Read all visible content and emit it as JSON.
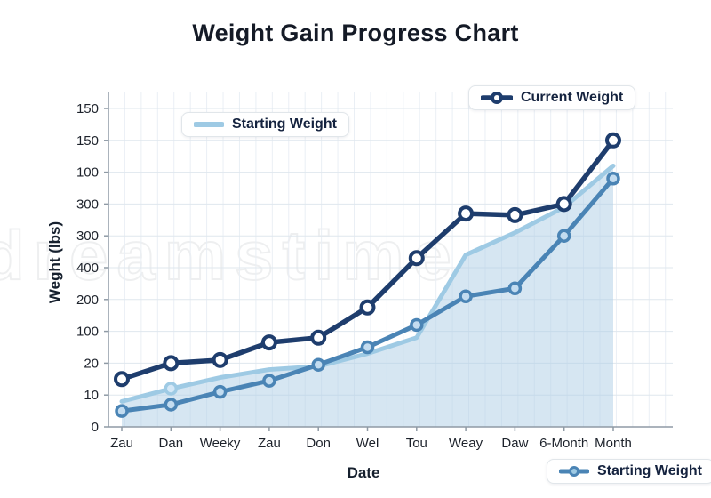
{
  "title": "Weight Gain Progress Chart",
  "watermark": "dreamstime",
  "legends": {
    "top_left": "Starting Weight",
    "top_right": "Current Weight",
    "bottom_right": "Starting Weight"
  },
  "colors": {
    "current_weight": "#1e3d6d",
    "starting_weight_light": "#9ecae4",
    "starting_weight_medium": "#4a84b5",
    "area_fill": "#aecde6",
    "grid_minor": "#eaeff5",
    "grid_major": "#dfe7ee",
    "axis": "#8f9aa5",
    "tick_text": "#1d222b",
    "title_text": "#141a26"
  },
  "chart_data": {
    "type": "line",
    "title": "Weight Gain Progress Chart",
    "xlabel": "Date",
    "ylabel": "Weght (lbs)",
    "categories": [
      "Zau",
      "Dan",
      "Weeky",
      "Zau",
      "Don",
      "Wel",
      "Tou",
      "Weay",
      "Daw",
      "6-Month",
      "Month"
    ],
    "y_tick_labels_bottom_to_top": [
      "0",
      "10",
      "20",
      "100",
      "200",
      "400",
      "300",
      "300",
      "100",
      "150",
      "150"
    ],
    "value_scale": "values in gridline units: 0 = bottom axis, 10 = top gridline (printed y tick labels are non-monotonic in source image)",
    "grid": true,
    "legend_positions": [
      "top-right",
      "top-left",
      "bottom-right"
    ],
    "series": [
      {
        "name": "Current Weight",
        "color": "#1e3d6d",
        "marker": "open-circle",
        "marker_fill": "#ffffff",
        "marker_indices": [
          0,
          1,
          2,
          3,
          4,
          5,
          6,
          7,
          8,
          9,
          10
        ],
        "area_fill": false,
        "values": [
          1.5,
          2.0,
          2.1,
          2.65,
          2.8,
          3.75,
          5.3,
          6.7,
          6.65,
          7.0,
          9.0
        ]
      },
      {
        "name": "Starting Weight",
        "color": "#9ecae4",
        "marker": "open-circle",
        "marker_fill": "#d4e8f7",
        "marker_indices": [
          1
        ],
        "area_fill": true,
        "values": [
          0.8,
          1.2,
          1.55,
          1.8,
          1.9,
          2.3,
          2.8,
          5.4,
          6.1,
          6.9,
          8.2
        ]
      },
      {
        "name": "Starting Weight",
        "color": "#4a84b5",
        "marker": "open-circle",
        "marker_fill": "#c3dcf0",
        "marker_indices": [
          0,
          1,
          2,
          3,
          4,
          5,
          6,
          7,
          8,
          9,
          10
        ],
        "area_fill": false,
        "values": [
          0.5,
          0.7,
          1.1,
          1.45,
          1.95,
          2.5,
          3.2,
          4.1,
          4.35,
          6.0,
          7.8
        ]
      }
    ]
  }
}
